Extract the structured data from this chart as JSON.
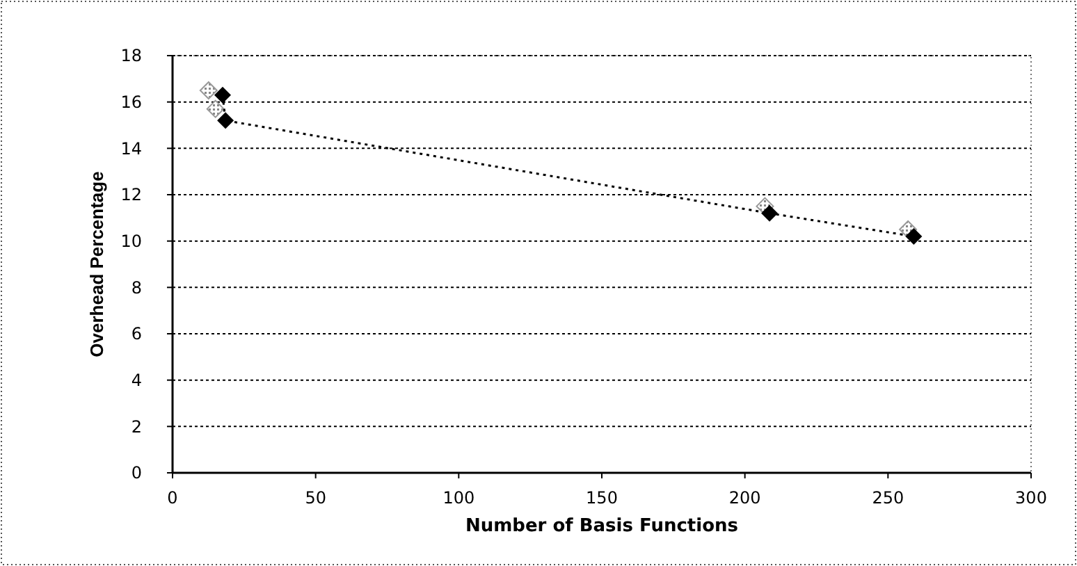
{
  "chart_data": {
    "type": "scatter",
    "xlabel": "Number of Basis Functions",
    "ylabel": "Overhead Percentage",
    "xlim": [
      0,
      300
    ],
    "xticks": [
      0,
      50,
      100,
      150,
      200,
      250,
      300
    ],
    "ylim": [
      0,
      18
    ],
    "yticks": [
      0,
      2,
      4,
      6,
      8,
      10,
      12,
      14,
      16,
      18
    ],
    "grid": "y",
    "marker": "diamond",
    "series": [
      {
        "color": "#999999",
        "x": [
          12.6,
          15,
          207,
          257
        ],
        "values": [
          16.5,
          15.7,
          11.5,
          10.5
        ]
      },
      {
        "type": "line",
        "line_style": "dotted",
        "color": "#000000",
        "x": [
          17.5,
          18.5,
          208.6,
          259
        ],
        "values": [
          16.3,
          15.2,
          11.2,
          10.2
        ]
      }
    ]
  }
}
